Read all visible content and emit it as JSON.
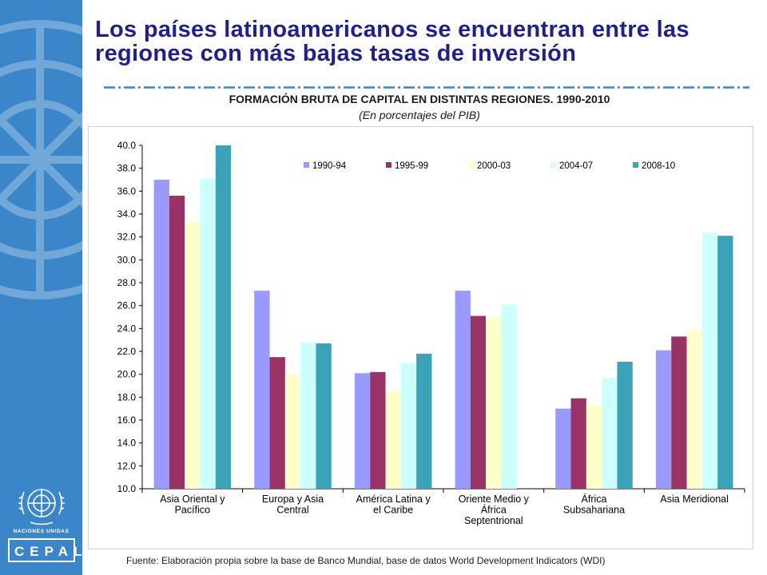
{
  "slide": {
    "title": "Los países latinoamericanos se encuentran entre las regiones con más bajas tasas de inversión",
    "source": "Fuente: Elaboración propia sobre la base de Banco Mundial, base de datos World Development Indicators (WDI)"
  },
  "sidebar": {
    "un_label": "NACIONES UNIDAS",
    "cepal_label": "CEPAL"
  },
  "chart_data": {
    "type": "bar",
    "title": "FORMACIÓN BRUTA DE CAPITAL EN DISTINTAS REGIONES. 1990-2010",
    "subtitle": "(En porcentajes del PIB)",
    "categories": [
      [
        "Asia Oriental y",
        "Pacífico"
      ],
      [
        "Europa y  Asia",
        "Central"
      ],
      [
        "América Latina y",
        "el Caribe"
      ],
      [
        "Oriente Medio y",
        "África",
        "Septentrional"
      ],
      [
        "África",
        "Subsahariana"
      ],
      [
        "Asia Meridional"
      ]
    ],
    "series": [
      {
        "name": "1990-94",
        "color": "#9999ff",
        "values": [
          37.0,
          27.3,
          20.1,
          27.3,
          17.0,
          22.1
        ]
      },
      {
        "name": "1995-99",
        "color": "#993366",
        "values": [
          35.6,
          21.5,
          20.2,
          25.1,
          17.9,
          23.3
        ]
      },
      {
        "name": "2000-03",
        "color": "#ffffcc",
        "values": [
          33.3,
          20.0,
          18.6,
          25.0,
          17.3,
          23.9
        ]
      },
      {
        "name": "2004-07",
        "color": "#ccffff",
        "values": [
          37.1,
          22.8,
          21.0,
          26.1,
          19.7,
          32.4
        ]
      },
      {
        "name": "2008-10",
        "color": "#3ba3b8",
        "values": [
          40.0,
          22.7,
          21.8,
          null,
          21.1,
          32.1
        ]
      }
    ],
    "ylim": [
      10.0,
      40.0
    ],
    "ytick_step": 2.0,
    "ytick_decimals": 1,
    "legend_position": "top-right",
    "grid": false
  }
}
